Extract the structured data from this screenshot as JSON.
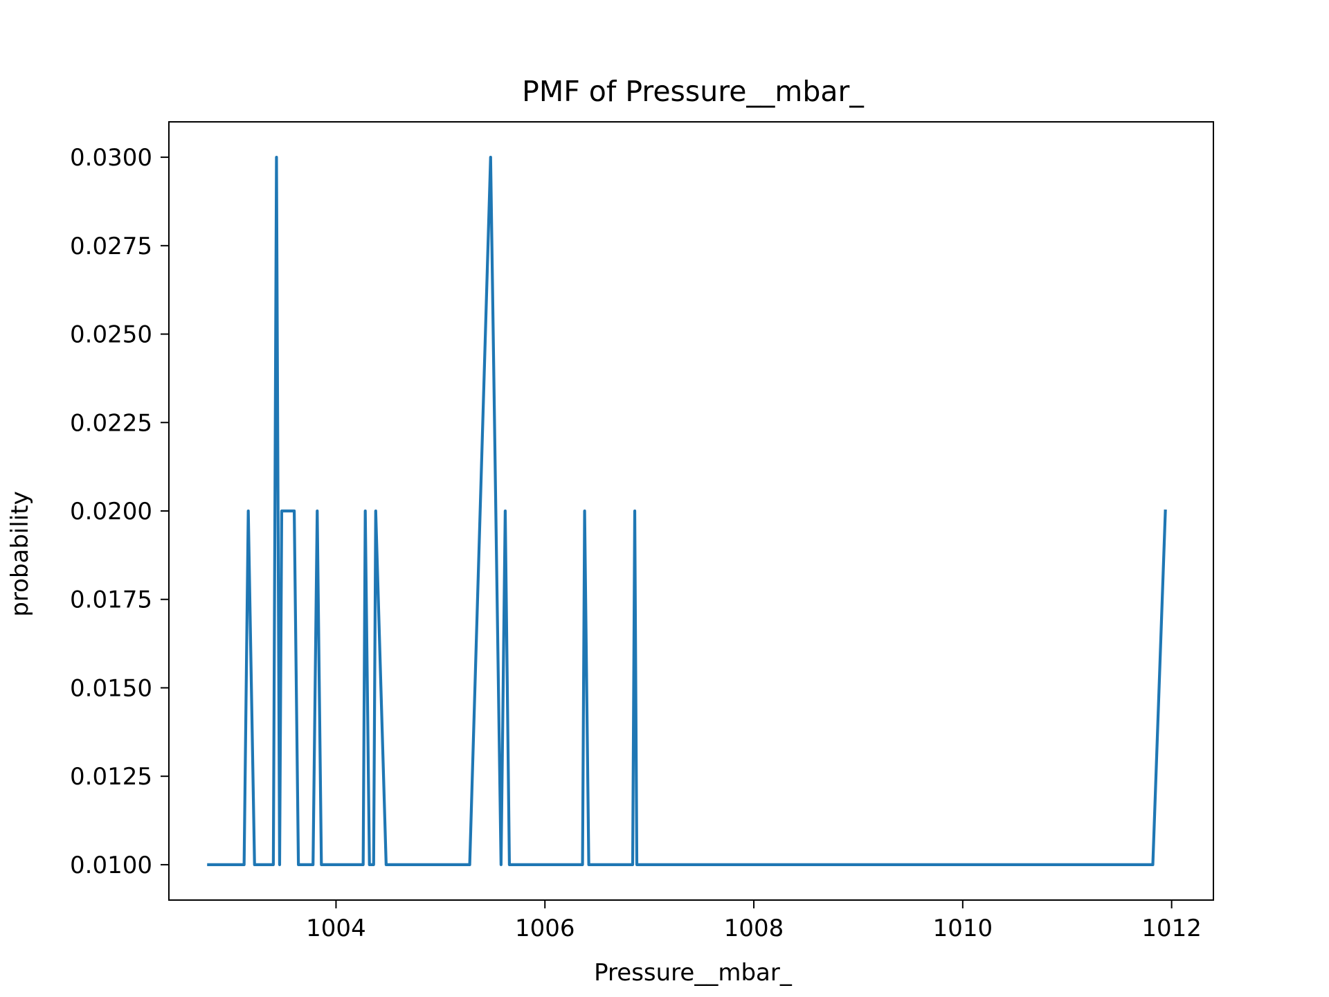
{
  "chart_data": {
    "type": "line",
    "title": "PMF of Pressure__mbar_",
    "xlabel": "Pressure__mbar_",
    "ylabel": "probability",
    "xlim": [
      1002.4,
      1012.4
    ],
    "ylim": [
      0.009,
      0.031
    ],
    "xticks": [
      1004,
      1006,
      1008,
      1010,
      1012
    ],
    "xtick_labels": [
      "1004",
      "1006",
      "1008",
      "1010",
      "1012"
    ],
    "yticks": [
      0.01,
      0.0125,
      0.015,
      0.0175,
      0.02,
      0.0225,
      0.025,
      0.0275,
      0.03
    ],
    "ytick_labels": [
      "0.0100",
      "0.0125",
      "0.0150",
      "0.0175",
      "0.0200",
      "0.0225",
      "0.0250",
      "0.0275",
      "0.0300"
    ],
    "grid": false,
    "line_color": "#1f77b4",
    "series": [
      {
        "x": [
          1002.78,
          1003.12,
          1003.16,
          1003.22,
          1003.4,
          1003.43,
          1003.46,
          1003.48,
          1003.6,
          1003.64,
          1003.78,
          1003.82,
          1003.86,
          1004.26,
          1004.28,
          1004.32,
          1004.36,
          1004.38,
          1004.48,
          1005.28,
          1005.48,
          1005.58,
          1005.62,
          1005.66,
          1006.36,
          1006.38,
          1006.42,
          1006.84,
          1006.86,
          1006.88,
          1011.82,
          1011.94
        ],
        "y": [
          0.01,
          0.01,
          0.02,
          0.01,
          0.01,
          0.03,
          0.01,
          0.02,
          0.02,
          0.01,
          0.01,
          0.02,
          0.01,
          0.01,
          0.02,
          0.01,
          0.01,
          0.02,
          0.01,
          0.01,
          0.03,
          0.01,
          0.02,
          0.01,
          0.01,
          0.02,
          0.01,
          0.01,
          0.02,
          0.01,
          0.01,
          0.02
        ]
      }
    ]
  }
}
